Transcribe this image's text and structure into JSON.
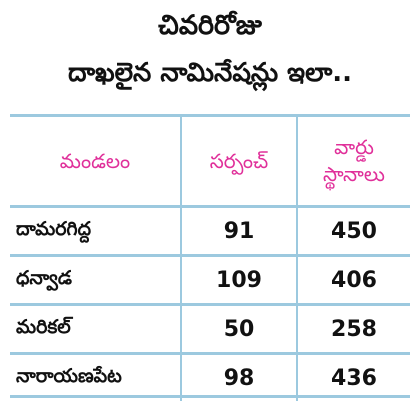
{
  "title": {
    "line1": "చివరిరోజు",
    "line2": "దాఖలైన నామినేషన్లు ఇలా.."
  },
  "table": {
    "headers": {
      "col1": "మండలం",
      "col2": "సర్పంచ్",
      "col3_line1": "వార్డు",
      "col3_line2": "స్థానాలు"
    },
    "rows": [
      {
        "mandal": "దామరగిద్ద",
        "sarpanch": "91",
        "ward": "450"
      },
      {
        "mandal": "ధన్వాడ",
        "sarpanch": "109",
        "ward": "406"
      },
      {
        "mandal": "మరికల్",
        "sarpanch": "50",
        "ward": "258"
      },
      {
        "mandal": "నారాయణపేట",
        "sarpanch": "98",
        "ward": "436"
      }
    ]
  },
  "colors": {
    "header_text": "#e0309a",
    "rule_lines": "#9cc9df",
    "body_text": "#111111"
  }
}
